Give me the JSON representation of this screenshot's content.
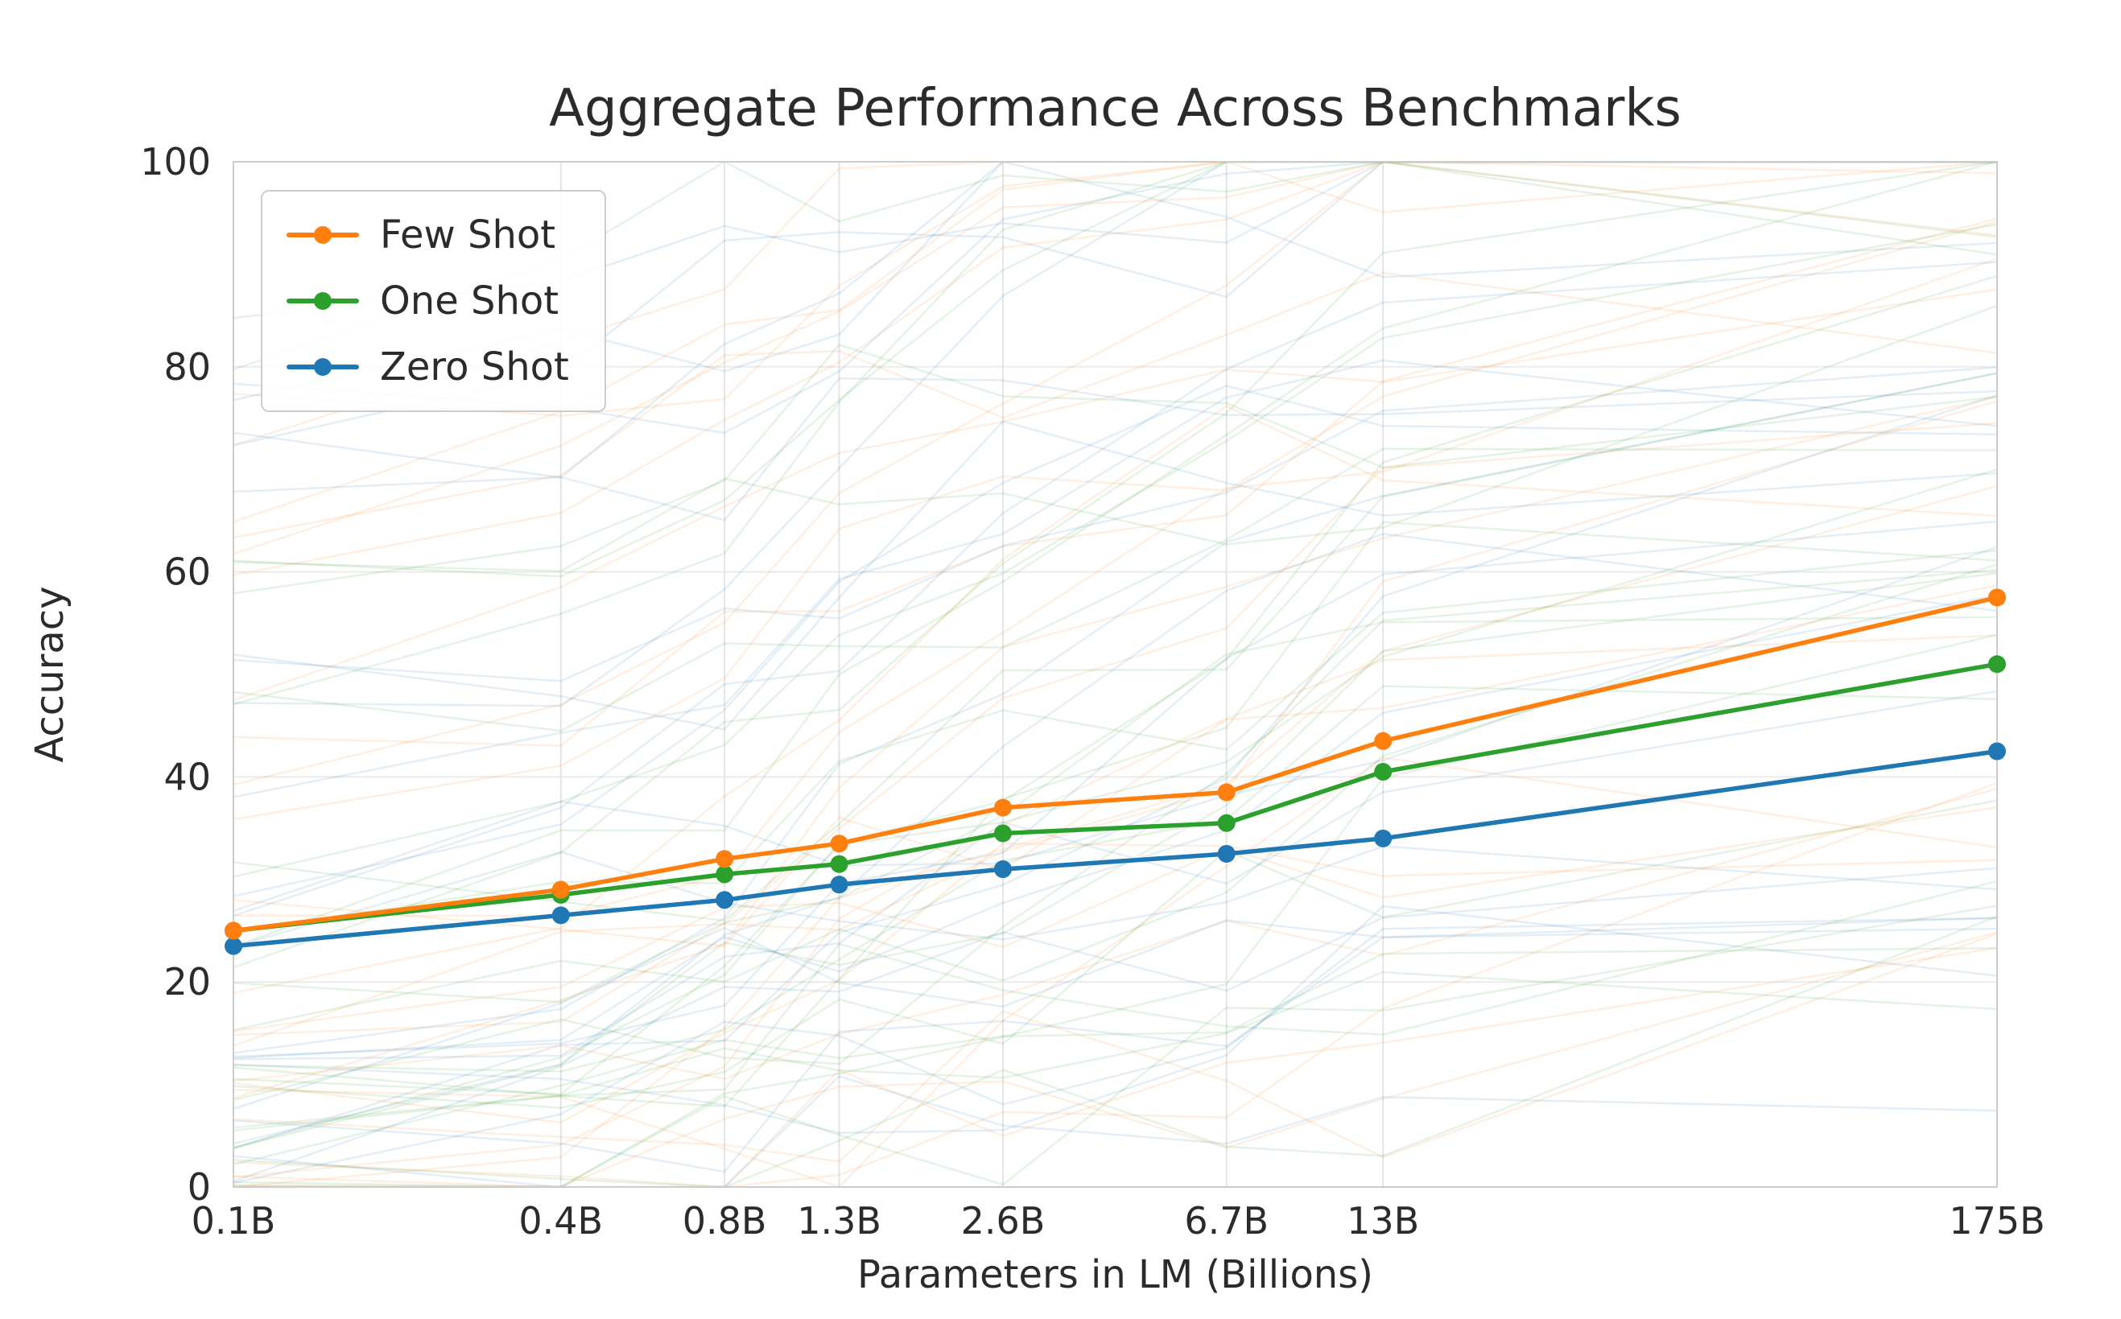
{
  "chart_data": {
    "type": "line",
    "title": "Aggregate Performance Across Benchmarks",
    "xlabel": "Parameters in LM (Billions)",
    "ylabel": "Accuracy",
    "x_scale": "log",
    "x": [
      0.1,
      0.4,
      0.8,
      1.3,
      2.6,
      6.7,
      13,
      175
    ],
    "x_tick_labels": [
      "0.1B",
      "0.4B",
      "0.8B",
      "1.3B",
      "2.6B",
      "6.7B",
      "13B",
      "175B"
    ],
    "y_ticks": [
      0,
      20,
      40,
      60,
      80,
      100
    ],
    "ylim": [
      0,
      100
    ],
    "grid": true,
    "legend_position": "upper-left",
    "series": [
      {
        "name": "Few Shot",
        "color": "#ff7f0e",
        "values": [
          25.0,
          29.0,
          32.0,
          33.5,
          37.0,
          38.5,
          43.5,
          57.5
        ]
      },
      {
        "name": "One Shot",
        "color": "#2ca02c",
        "values": [
          25.0,
          28.5,
          30.5,
          31.5,
          34.5,
          35.5,
          40.5,
          51.0
        ]
      },
      {
        "name": "Zero Shot",
        "color": "#1f77b4",
        "values": [
          23.5,
          26.5,
          28.0,
          29.5,
          31.0,
          32.5,
          34.0,
          42.5
        ]
      }
    ],
    "background_lines": {
      "per_series": 26,
      "opacity": 0.12,
      "seed": 7
    }
  }
}
